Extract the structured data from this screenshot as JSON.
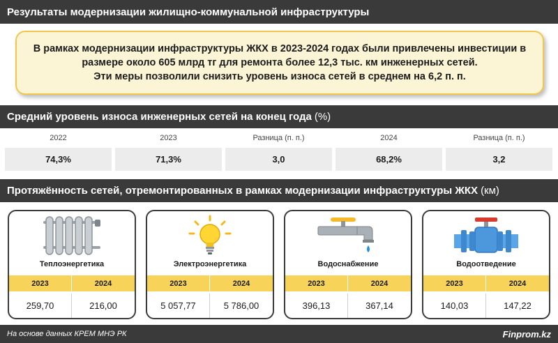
{
  "header": {
    "title": "Результаты модернизации жилищно-коммунальной инфраструктуры"
  },
  "notice": {
    "lines": [
      "В рамках модернизации инфраструктуры ЖКХ в 2023-2024 годах были привлечены инвестиции в",
      "размере около 605 млрд тг для ремонта более 12,3 тыс. км инженерных сетей.",
      "Эти меры позволили снизить уровень износа сетей в среднем на 6,2 п. п."
    ]
  },
  "wear_section": {
    "title": "Средний уровень износа инженерных сетей на конец года",
    "unit": "(%)"
  },
  "network_section": {
    "title": "Протяжённость сетей, отремонтированных в рамках модернизации инфраструктуры ЖКХ",
    "unit": "(км)"
  },
  "colors": {
    "band": "#3a3a3a",
    "accent_yellow": "#f7d35a",
    "notice_bg": "#fbf5d5",
    "notice_border": "#efc84a",
    "cell_bg": "#ececec"
  },
  "chart_data": [
    {
      "type": "table",
      "title": "Средний уровень износа инженерных сетей на конец года",
      "unit": "(%)",
      "columns": [
        "2022",
        "2023",
        "Разница (п. п.)",
        "2024",
        "Разница (п. п.)"
      ],
      "values": [
        "74,3%",
        "71,3%",
        "3,0",
        "68,2%",
        "3,2"
      ]
    },
    {
      "type": "table",
      "title": "Протяжённость сетей, отремонтированных в рамках модернизации инфраструктуры ЖКХ",
      "unit": "(км)",
      "years": [
        "2023",
        "2024"
      ],
      "rows": [
        {
          "name": "Теплоэнергетика",
          "icon": "radiator-icon",
          "values": [
            "259,70",
            "216,00"
          ]
        },
        {
          "name": "Электроэнергетика",
          "icon": "lightbulb-icon",
          "values": [
            "5 057,77",
            "5 786,00"
          ]
        },
        {
          "name": "Водоснабжение",
          "icon": "water-tap-icon",
          "values": [
            "396,13",
            "367,14"
          ]
        },
        {
          "name": "Водоотведение",
          "icon": "pipe-valve-icon",
          "values": [
            "140,03",
            "147,22"
          ]
        }
      ]
    }
  ],
  "footer": {
    "source": "На основе данных КРЕМ МНЭ РК",
    "brand": "Finprom.kz"
  }
}
